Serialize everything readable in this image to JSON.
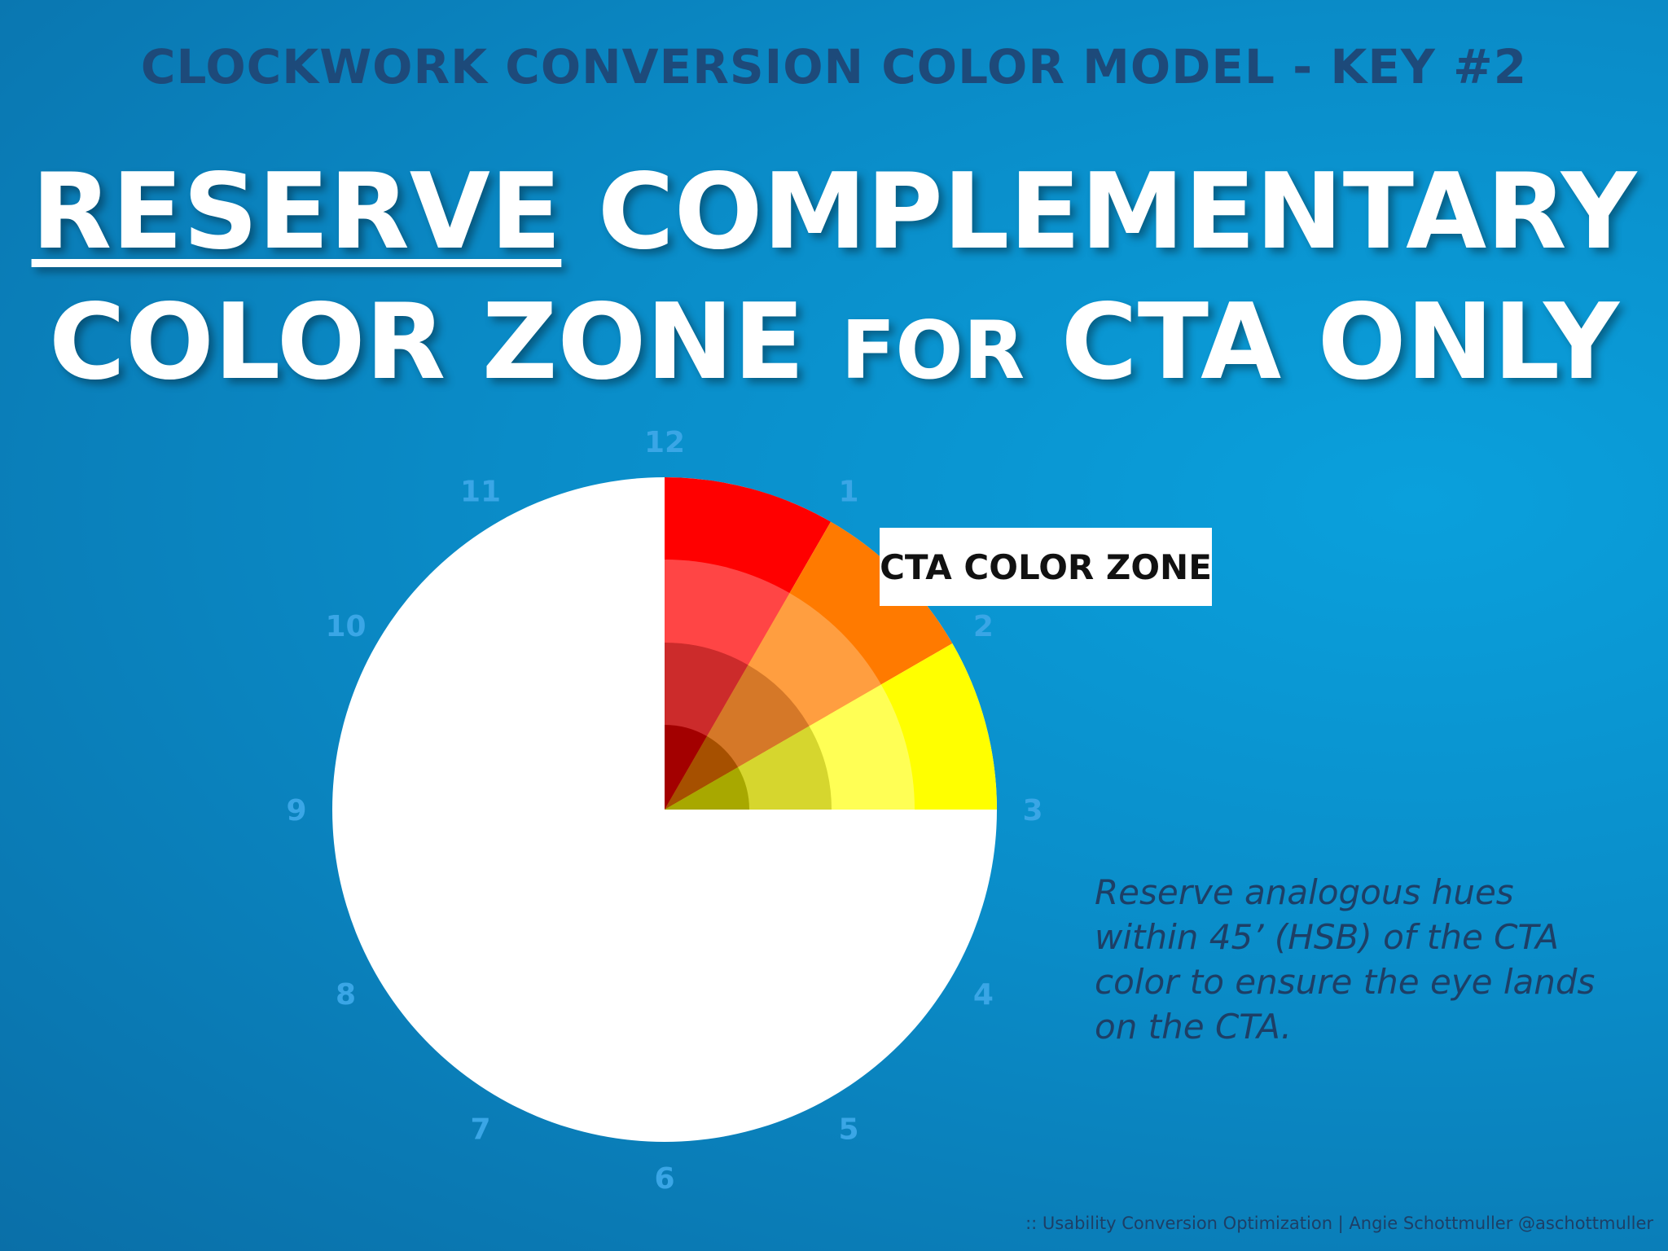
{
  "subtitle": "CLOCKWORK CONVERSION COLOR MODEL - KEY #2",
  "headline": {
    "word1": "RESERVE",
    "word2": "COMPLEMENTARY",
    "line2a": "COLOR ZONE",
    "line2b": "FOR",
    "line2c": "CTA ONLY"
  },
  "clock_numbers": [
    "12",
    "1",
    "2",
    "3",
    "4",
    "5",
    "6",
    "7",
    "8",
    "9",
    "10",
    "11"
  ],
  "wheel_colors": {
    "red": [
      "#ff0000",
      "#ff4545",
      "#cc2b2b",
      "#a30000"
    ],
    "orange": [
      "#ff7a00",
      "#ff9e40",
      "#d57828",
      "#a65000"
    ],
    "yellow": [
      "#ffff00",
      "#ffff55",
      "#d6d62e",
      "#a8a800"
    ],
    "rest": "#ffffff",
    "label": "#3aa6e6"
  },
  "cta_label": "CTA COLOR ZONE",
  "note": "Reserve analogous hues within 45’ (HSB) of the CTA color to ensure the eye lands on the CTA.",
  "footer": ":: Usability Conversion Optimization  |  Angie Schottmuller  @aschottmuller"
}
